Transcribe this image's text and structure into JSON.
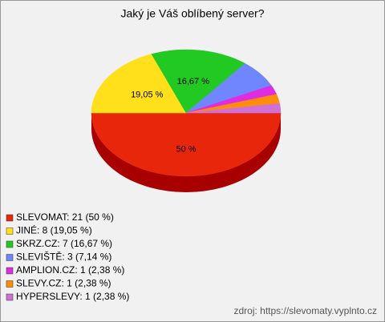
{
  "chart_data": {
    "type": "pie3d",
    "title": "Jaký je Váš oblíbený server?",
    "categories": [
      "SLEVOMAT: 21 (50 %)",
      "JINÉ: 8 (19,05 %)",
      "SKRZ.CZ: 7 (16,67 %)",
      "SLEVIŠTĚ: 3 (7,14 %)",
      "AMPLION.CZ: 1 (2,38 %)",
      "SLEVY.CZ: 1 (2,38 %)",
      "HYPERSLEVY: 1 (2,38 %)"
    ],
    "values": [
      50,
      19.05,
      16.67,
      7.14,
      2.38,
      2.38,
      2.38
    ],
    "value_labels": [
      "50 %",
      "19,05 %",
      "16,67 %",
      null,
      null,
      null,
      null
    ],
    "colors": [
      "#e8260c",
      "#ffe01a",
      "#22c922",
      "#6f86ff",
      "#e02ce0",
      "#ff8c0a",
      "#cf70d6"
    ],
    "side_colors": [
      "#a80000",
      "#c8a800",
      "#159015",
      "#4050c0",
      "#a010a0",
      "#c06000",
      "#9a40a0"
    ],
    "legend": "bottom-left",
    "source": "zdroj: https://slevomaty.vyplnto.cz"
  }
}
